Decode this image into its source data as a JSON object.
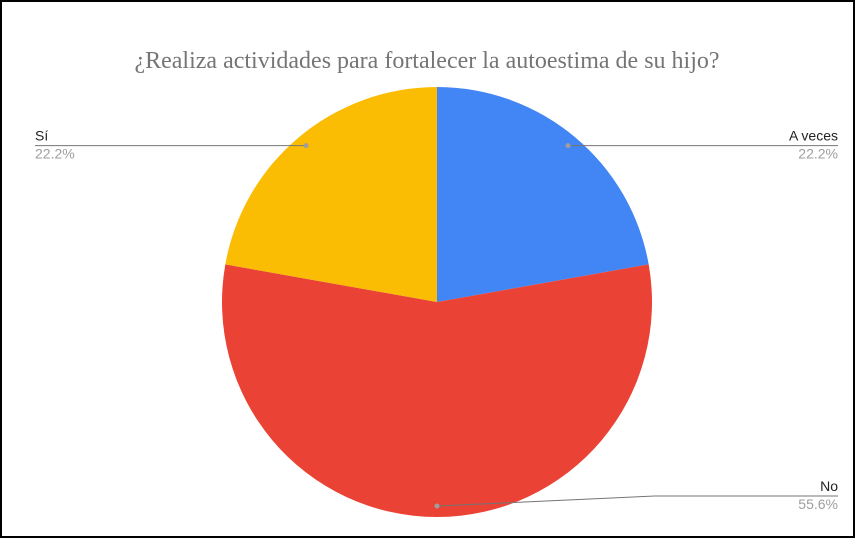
{
  "chart_data": {
    "type": "pie",
    "title": "¿Realiza actividades para fortalecer la autoestima de su hijo?",
    "categories": [
      "A veces",
      "No",
      "Sí"
    ],
    "values": [
      22.2,
      55.6,
      22.2
    ],
    "value_labels": [
      "22.2%",
      "55.6%",
      "22.2%"
    ],
    "colors": [
      "#4285f4",
      "#ea4335",
      "#fbbc04"
    ]
  }
}
